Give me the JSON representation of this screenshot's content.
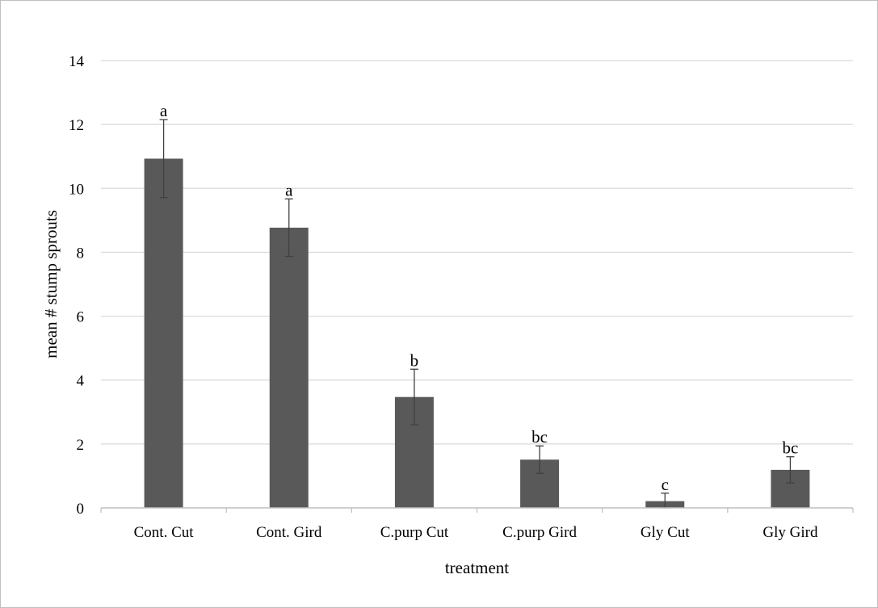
{
  "chart_data": {
    "type": "bar",
    "xlabel": "treatment",
    "ylabel": "mean # stump sprouts",
    "ylim": [
      0,
      14
    ],
    "yticks": [
      0,
      2,
      4,
      6,
      8,
      10,
      12,
      14
    ],
    "grid": true,
    "categories": [
      "Cont. Cut",
      "Cont. Gird",
      "C.purp Cut",
      "C.purp Gird",
      "Gly Cut",
      "Gly Gird"
    ],
    "values": [
      10.93,
      8.77,
      3.47,
      1.51,
      0.21,
      1.19
    ],
    "error": [
      1.22,
      0.9,
      0.87,
      0.43,
      0.25,
      0.41
    ],
    "significance": [
      "a",
      "a",
      "b",
      "bc",
      "c",
      "bc"
    ],
    "colors": {
      "bar": "#595959",
      "grid": "#d9d9d9",
      "axis": "#bfbfbf",
      "errorbar": "#404040"
    }
  }
}
